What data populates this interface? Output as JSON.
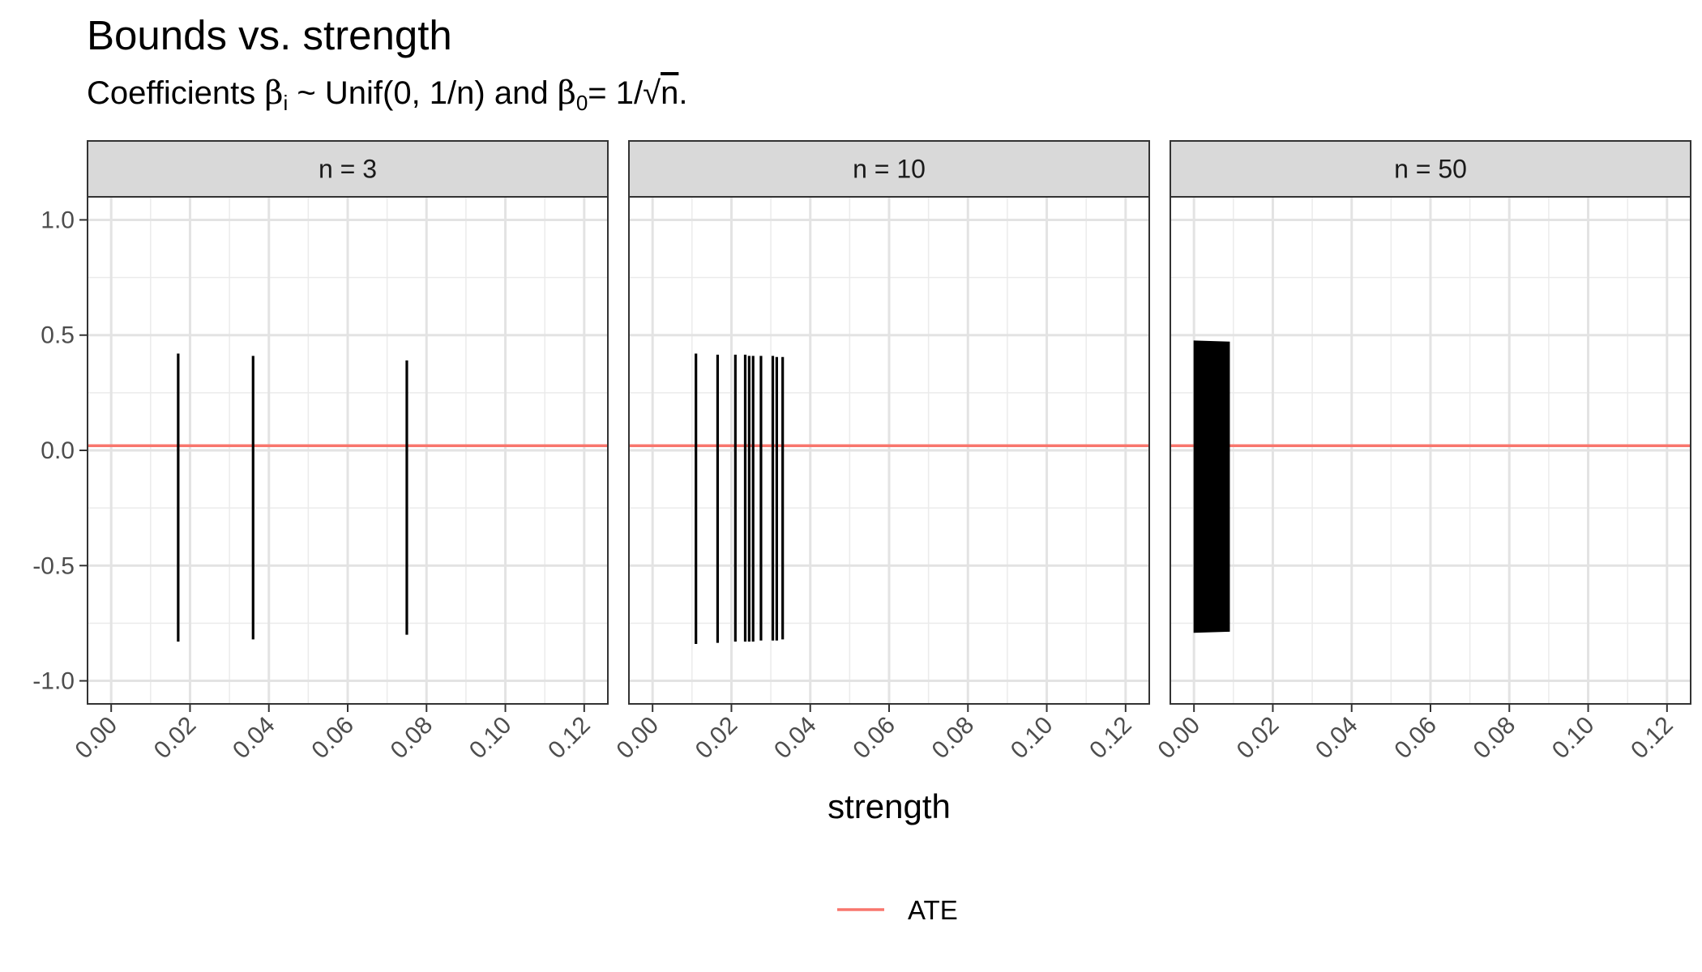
{
  "chart_data": {
    "type": "line",
    "title": "Bounds vs. strength",
    "subtitle": {
      "prefix": "Coefficients ",
      "beta": "β",
      "sub_i": "i",
      "mid": " ~ Unif(0, 1/n) and ",
      "sub_0": "0",
      "eq": "= 1/",
      "sqrt": "√",
      "n": "n",
      "end": "."
    },
    "xlabel": "strength",
    "ylabel": "",
    "xlim": [
      -0.006,
      0.126
    ],
    "ylim": [
      -1.1,
      1.1
    ],
    "x_ticks": [
      "0.00",
      "0.02",
      "0.04",
      "0.06",
      "0.08",
      "0.10",
      "0.12"
    ],
    "y_ticks": [
      "1.0",
      "0.5",
      "0.0",
      "-0.5",
      "-1.0"
    ],
    "grid": true,
    "legend": {
      "position": "bottom",
      "entries": [
        {
          "label": "ATE",
          "color": "#F8766D"
        }
      ]
    },
    "ate_value": 0.02,
    "panels": [
      {
        "label": "n = 3",
        "segments": [
          {
            "x": 0.017,
            "lower": -0.83,
            "upper": 0.42
          },
          {
            "x": 0.036,
            "lower": -0.82,
            "upper": 0.41
          },
          {
            "x": 0.075,
            "lower": -0.8,
            "upper": 0.39
          }
        ]
      },
      {
        "label": "n = 10",
        "segments": [
          {
            "x": 0.011,
            "lower": -0.84,
            "upper": 0.42
          },
          {
            "x": 0.0165,
            "lower": -0.835,
            "upper": 0.415
          },
          {
            "x": 0.021,
            "lower": -0.83,
            "upper": 0.415
          },
          {
            "x": 0.0235,
            "lower": -0.83,
            "upper": 0.415
          },
          {
            "x": 0.0245,
            "lower": -0.83,
            "upper": 0.41
          },
          {
            "x": 0.0255,
            "lower": -0.83,
            "upper": 0.41
          },
          {
            "x": 0.0275,
            "lower": -0.825,
            "upper": 0.41
          },
          {
            "x": 0.0305,
            "lower": -0.825,
            "upper": 0.41
          },
          {
            "x": 0.0315,
            "lower": -0.825,
            "upper": 0.405
          },
          {
            "x": 0.033,
            "lower": -0.82,
            "upper": 0.405
          }
        ]
      },
      {
        "label": "n = 50",
        "band": {
          "x_start": 0.0,
          "x_end": 0.009,
          "upper_start": 0.475,
          "upper_end": 0.47,
          "lower_start": -0.79,
          "lower_end": -0.785
        }
      }
    ]
  }
}
